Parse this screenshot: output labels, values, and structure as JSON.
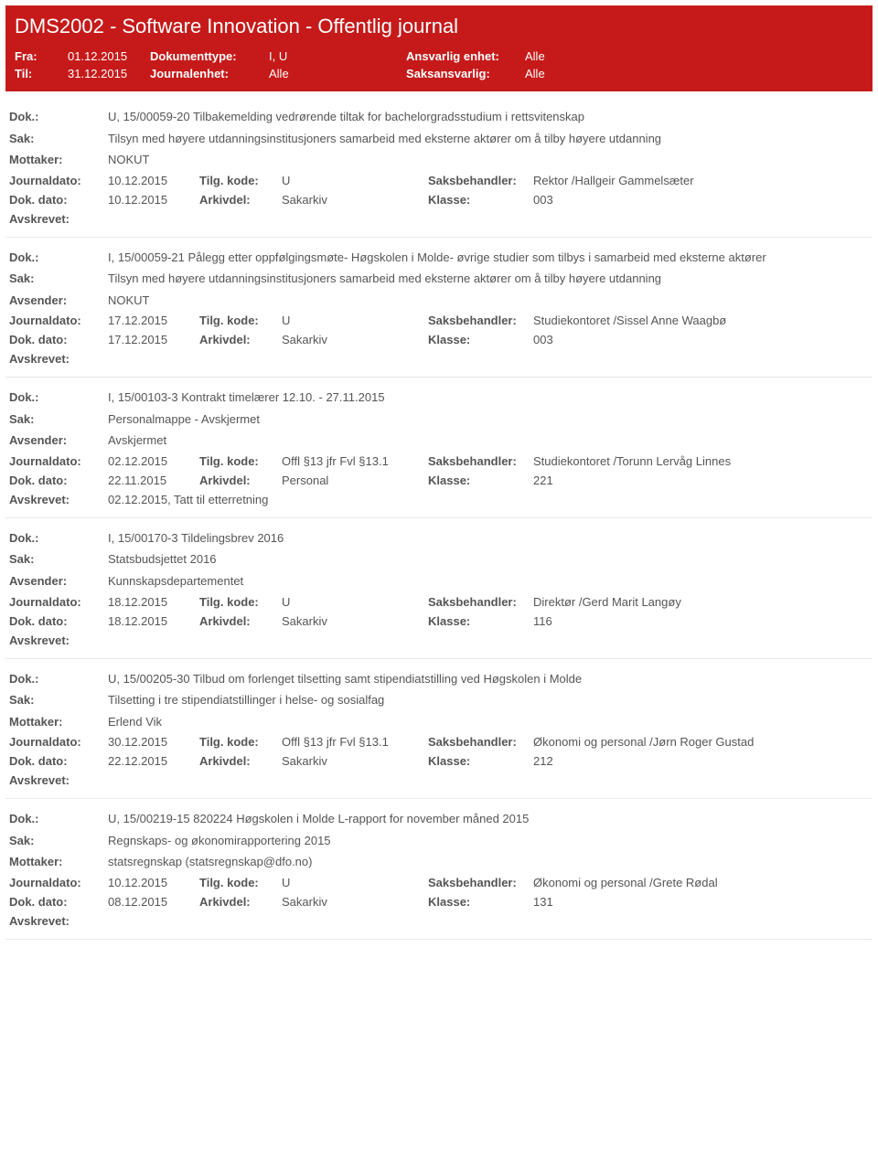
{
  "banner": {
    "title": "DMS2002 - Software Innovation - Offentlig journal",
    "row1": {
      "lbl1": "Fra:",
      "val1": "01.12.2015",
      "lbl2": "Dokumenttype:",
      "val2": "I, U",
      "lbl3": "Ansvarlig enhet:",
      "val3": "Alle"
    },
    "row2": {
      "lbl1": "Til:",
      "val1": "31.12.2015",
      "lbl2": "Journalenhet:",
      "val2": "Alle",
      "lbl3": "Saksansvarlig:",
      "val3": "Alle"
    }
  },
  "labels": {
    "dok": "Dok.:",
    "sak": "Sak:",
    "mottaker": "Mottaker:",
    "avsender": "Avsender:",
    "journaldato": "Journaldato:",
    "dokdato": "Dok. dato:",
    "tilgkode": "Tilg. kode:",
    "arkivdel": "Arkivdel:",
    "saksbehandler": "Saksbehandler:",
    "klasse": "Klasse:",
    "avskrevet": "Avskrevet:"
  },
  "entries": [
    {
      "dok": "U, 15/00059-20 Tilbakemelding vedrørende tiltak for bachelorgradsstudium i rettsvitenskap",
      "sak": "Tilsyn med høyere utdanningsinstitusjoners samarbeid med eksterne aktører om å tilby høyere utdanning",
      "partyLabel": "Mottaker:",
      "party": "NOKUT",
      "journaldato": "10.12.2015",
      "tilgkode": "U",
      "saksbehandler": "Rektor /Hallgeir Gammelsæter",
      "dokdato": "10.12.2015",
      "arkivdel": "Sakarkiv",
      "klasse": "003",
      "avskrevet": ""
    },
    {
      "dok": "I, 15/00059-21 Pålegg etter oppfølgingsmøte-  Høgskolen i Molde- øvrige studier som tilbys i samarbeid med eksterne aktører",
      "sak": "Tilsyn med høyere utdanningsinstitusjoners samarbeid med eksterne aktører om å tilby høyere utdanning",
      "partyLabel": "Avsender:",
      "party": "NOKUT",
      "journaldato": "17.12.2015",
      "tilgkode": "U",
      "saksbehandler": "Studiekontoret /Sissel Anne Waagbø",
      "dokdato": "17.12.2015",
      "arkivdel": "Sakarkiv",
      "klasse": "003",
      "avskrevet": ""
    },
    {
      "dok": "I, 15/00103-3 Kontrakt timelærer 12.10. - 27.11.2015",
      "sak": "Personalmappe - Avskjermet",
      "partyLabel": "Avsender:",
      "party": "Avskjermet",
      "journaldato": "02.12.2015",
      "tilgkode": "Offl §13 jfr Fvl §13.1",
      "saksbehandler": "Studiekontoret /Torunn Lervåg Linnes",
      "dokdato": "22.11.2015",
      "arkivdel": "Personal",
      "klasse": "221",
      "avskrevet": "02.12.2015, Tatt til etterretning"
    },
    {
      "dok": "I, 15/00170-3 Tildelingsbrev 2016",
      "sak": "Statsbudsjettet 2016",
      "partyLabel": "Avsender:",
      "party": "Kunnskapsdepartementet",
      "journaldato": "18.12.2015",
      "tilgkode": "U",
      "saksbehandler": "Direktør /Gerd Marit Langøy",
      "dokdato": "18.12.2015",
      "arkivdel": "Sakarkiv",
      "klasse": "116",
      "avskrevet": ""
    },
    {
      "dok": "U, 15/00205-30 Tilbud om forlenget tilsetting samt stipendiatstilling ved Høgskolen i Molde",
      "sak": "Tilsetting i tre stipendiatstillinger i helse- og sosialfag",
      "partyLabel": "Mottaker:",
      "party": "Erlend Vik",
      "journaldato": "30.12.2015",
      "tilgkode": "Offl §13 jfr Fvl §13.1",
      "saksbehandler": "Økonomi og personal /Jørn Roger Gustad",
      "dokdato": "22.12.2015",
      "arkivdel": "Sakarkiv",
      "klasse": "212",
      "avskrevet": ""
    },
    {
      "dok": "U, 15/00219-15 820224 Høgskolen i Molde L-rapport for november måned 2015",
      "sak": "Regnskaps- og økonomirapportering 2015",
      "partyLabel": "Mottaker:",
      "party": "statsregnskap (statsregnskap@dfo.no)",
      "journaldato": "10.12.2015",
      "tilgkode": "U",
      "saksbehandler": "Økonomi og personal /Grete Rødal",
      "dokdato": "08.12.2015",
      "arkivdel": "Sakarkiv",
      "klasse": "131",
      "avskrevet": ""
    }
  ]
}
